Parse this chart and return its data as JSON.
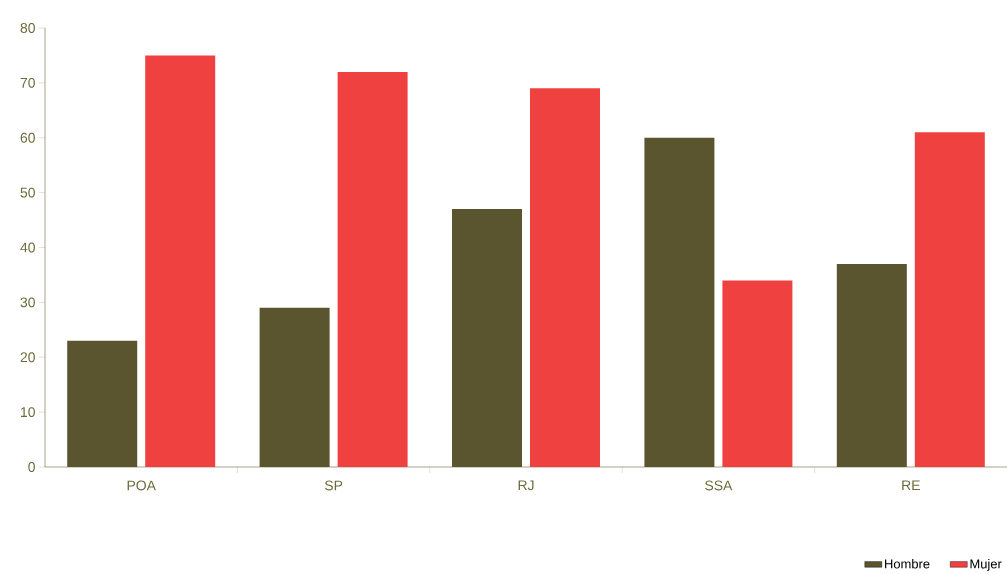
{
  "chart_data": {
    "type": "bar",
    "categories": [
      "POA",
      "SP",
      "RJ",
      "SSA",
      "RE"
    ],
    "series": [
      {
        "name": "Hombre",
        "color": "#5a552f",
        "values": [
          23,
          29,
          47,
          60,
          37
        ]
      },
      {
        "name": "Mujer",
        "color": "#ef4240",
        "values": [
          75,
          72,
          69,
          34,
          61
        ]
      }
    ],
    "ylim": [
      0,
      80
    ],
    "yticks": [
      0,
      10,
      20,
      30,
      40,
      50,
      60,
      70,
      80
    ],
    "grid": false,
    "legend": "bottom right"
  }
}
